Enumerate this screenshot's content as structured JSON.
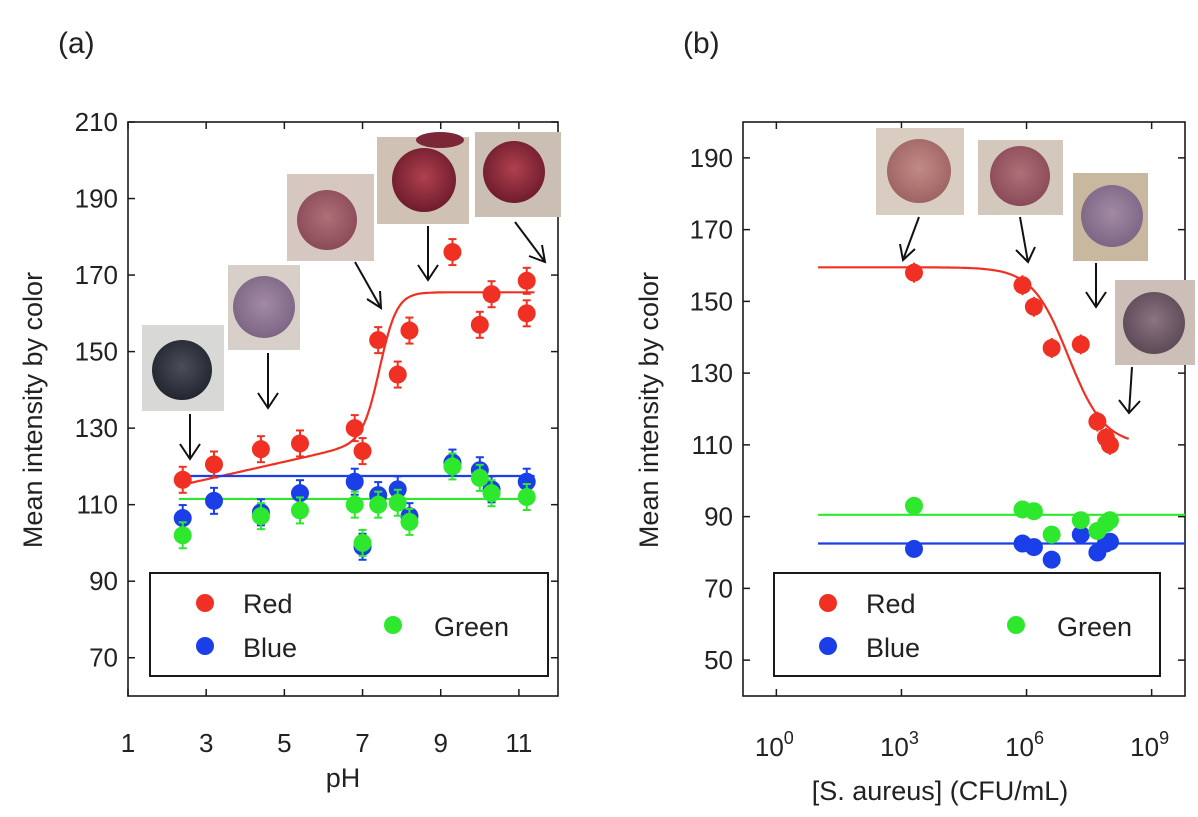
{
  "chart_data": [
    {
      "panel_label": "(a)",
      "type": "scatter",
      "xlabel": "pH",
      "ylabel": "Mean intensity by color",
      "xlim": [
        1,
        12
      ],
      "ylim": [
        60,
        210
      ],
      "xticks": [
        "1",
        "3",
        "5",
        "7",
        "9",
        "11"
      ],
      "yticks": [
        "70",
        "90",
        "110",
        "130",
        "150",
        "170",
        "190",
        "210"
      ],
      "legend": {
        "placement": "bottom",
        "items": [
          "Red",
          "Blue",
          "Green"
        ]
      },
      "colors": {
        "Red": "#f03022",
        "Blue": "#1a3ee8",
        "Green": "#2ee82e"
      },
      "series": [
        {
          "name": "Red",
          "points": [
            [
              2.4,
              116.5
            ],
            [
              3.2,
              120.5
            ],
            [
              4.4,
              124.5
            ],
            [
              5.4,
              126
            ],
            [
              6.8,
              130
            ],
            [
              7.0,
              124
            ],
            [
              7.4,
              153
            ],
            [
              7.9,
              144
            ],
            [
              8.2,
              155.5
            ],
            [
              9.3,
              176
            ],
            [
              10.0,
              157
            ],
            [
              10.3,
              165
            ],
            [
              11.2,
              168.5
            ],
            [
              11.2,
              160
            ]
          ]
        },
        {
          "name": "Blue",
          "points": [
            [
              2.4,
              106.5
            ],
            [
              3.2,
              111
            ],
            [
              4.4,
              108
            ],
            [
              5.4,
              113
            ],
            [
              6.8,
              116
            ],
            [
              7.0,
              99
            ],
            [
              7.4,
              112.5
            ],
            [
              7.9,
              114
            ],
            [
              8.2,
              107
            ],
            [
              9.3,
              121
            ],
            [
              10.0,
              119
            ],
            [
              10.3,
              114
            ],
            [
              11.2,
              116
            ]
          ]
        },
        {
          "name": "Green",
          "points": [
            [
              2.4,
              102
            ],
            [
              4.4,
              107
            ],
            [
              5.4,
              108.5
            ],
            [
              6.8,
              110
            ],
            [
              7.0,
              100
            ],
            [
              7.4,
              110
            ],
            [
              7.9,
              110.5
            ],
            [
              8.2,
              105.5
            ],
            [
              9.3,
              120
            ],
            [
              10.0,
              117
            ],
            [
              10.3,
              113
            ],
            [
              11.2,
              112
            ]
          ]
        }
      ],
      "fits": {
        "Red": {
          "model": "sigmoid",
          "bottom_baseline": [
            115,
            2.3
          ],
          "top": 165.5,
          "mid": 7.45,
          "slope": 0.22,
          "x_range": [
            2.3,
            11.4
          ]
        },
        "Blue": {
          "model": "constant",
          "value": 117.5,
          "x_range": [
            2.3,
            11.4
          ]
        },
        "Green": {
          "model": "constant",
          "value": 111.5,
          "x_range": [
            2.3,
            11.4
          ]
        }
      }
    },
    {
      "panel_label": "(b)",
      "type": "scatter",
      "xscale": "log",
      "xlabel": "[S. aureus] (CFU/mL)",
      "ylabel": "Mean intensity by color",
      "xlim": [
        1,
        1000000000.0
      ],
      "ylim": [
        40,
        200
      ],
      "xticks": [
        {
          "base": "10",
          "exp": "0"
        },
        {
          "base": "10",
          "exp": "3"
        },
        {
          "base": "10",
          "exp": "6"
        },
        {
          "base": "10",
          "exp": "9"
        }
      ],
      "yticks": [
        "50",
        "70",
        "90",
        "110",
        "130",
        "150",
        "170",
        "190"
      ],
      "legend": {
        "placement": "bottom",
        "items": [
          "Red",
          "Blue",
          "Green"
        ]
      },
      "colors": {
        "Red": "#f03022",
        "Blue": "#1a3ee8",
        "Green": "#2ee82e"
      },
      "series": [
        {
          "name": "Red",
          "points": [
            [
              2000,
              158
            ],
            [
              800000,
              154.5
            ],
            [
              1500000,
              148.5
            ],
            [
              4000000,
              137
            ],
            [
              20000000,
              138
            ],
            [
              50000000,
              116.5
            ],
            [
              80000000,
              112
            ],
            [
              100000000,
              110
            ]
          ]
        },
        {
          "name": "Blue",
          "points": [
            [
              2000,
              81
            ],
            [
              800000,
              82.5
            ],
            [
              1500000,
              81.5
            ],
            [
              4000000,
              78
            ],
            [
              20000000,
              85
            ],
            [
              50000000,
              80
            ],
            [
              80000000,
              82.5
            ],
            [
              100000000,
              83
            ]
          ]
        },
        {
          "name": "Green",
          "points": [
            [
              2000,
              93
            ],
            [
              800000,
              92
            ],
            [
              1500000,
              91.5
            ],
            [
              4000000,
              85
            ],
            [
              20000000,
              89
            ],
            [
              50000000,
              86
            ],
            [
              80000000,
              88
            ],
            [
              100000000,
              89
            ]
          ]
        }
      ],
      "fits": {
        "Red": {
          "model": "sigmoid_log",
          "top": 159.5,
          "bottom": 110,
          "mid_log10": 7.0,
          "slope": 1.0,
          "x_range": [
            10,
            300000000
          ]
        },
        "Blue": {
          "model": "constant",
          "value": 82.5,
          "x_range": [
            10,
            3000000000
          ]
        },
        "Green": {
          "model": "constant",
          "value": 90.5,
          "x_range": [
            10,
            3000000000
          ]
        }
      }
    }
  ]
}
